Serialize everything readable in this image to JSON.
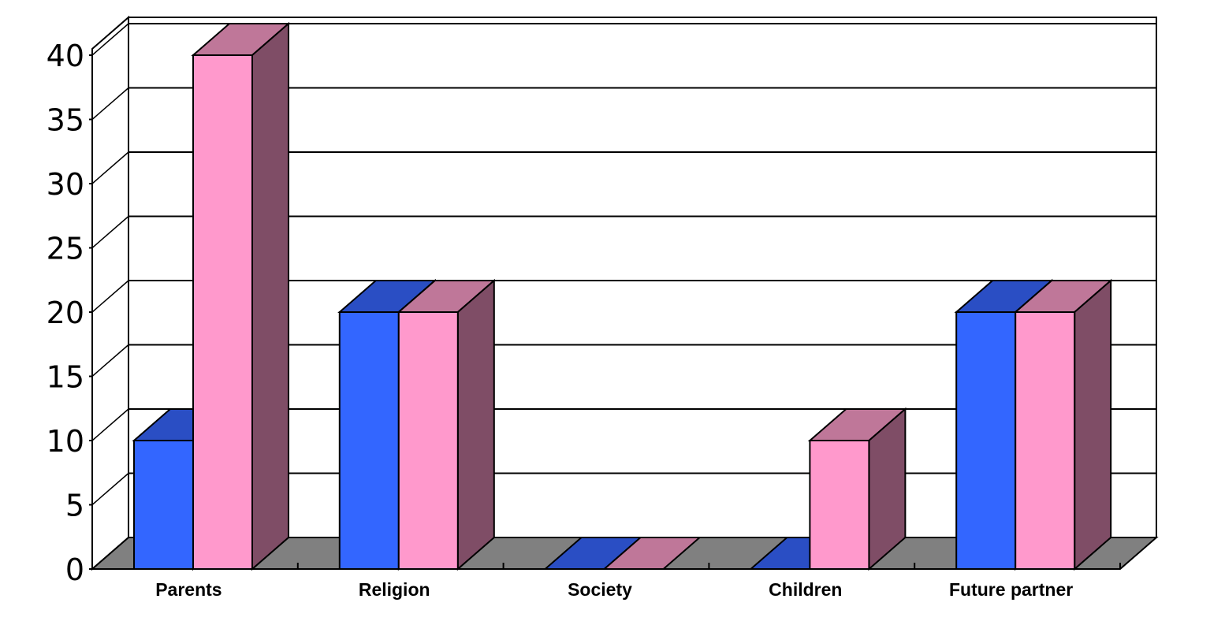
{
  "chart_data": {
    "type": "bar",
    "style": "3d-clustered-column",
    "categories": [
      "Parents",
      "Religion",
      "Society",
      "Children",
      "Future partner"
    ],
    "series": [
      {
        "values": [
          10,
          20,
          0,
          0,
          20
        ],
        "color": "#3366FF",
        "top_color": "#2A4EC4",
        "side_color": "#1F3A99"
      },
      {
        "values": [
          40,
          20,
          0,
          10,
          20
        ],
        "color": "#FF99CC",
        "top_color": "#BF7799",
        "side_color": "#7F4D66"
      }
    ],
    "yticks": [
      "0",
      "5",
      "10",
      "15",
      "20",
      "25",
      "30",
      "35",
      "40"
    ],
    "ylim": [
      0,
      40
    ],
    "grid": true,
    "floor_color": "#808080",
    "legend": "none"
  }
}
